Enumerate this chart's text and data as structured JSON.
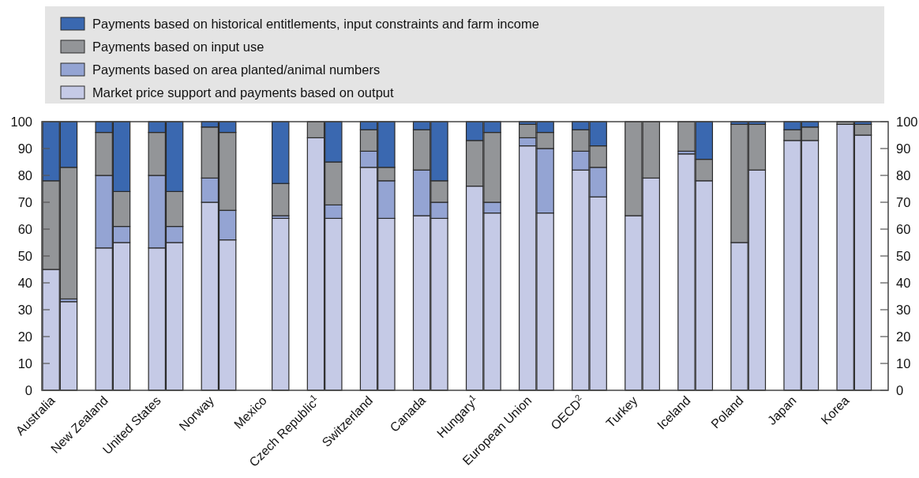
{
  "chart_data": {
    "type": "bar",
    "stacked": true,
    "legend": "top",
    "grid": false,
    "categories": [
      "Australia",
      null,
      null,
      "New Zealand",
      null,
      null,
      "United States",
      null,
      null,
      "Norway",
      null,
      null,
      "Mexico",
      null,
      null,
      "Czech Republic$^{1}$",
      null,
      null,
      "Switzerland",
      null,
      null,
      "Canada",
      null,
      null,
      "Hungary$^{1}$",
      null,
      null,
      "European Union",
      null,
      null,
      "OECD$^{2}$",
      null,
      null,
      "Turkey",
      null,
      null,
      "Iceland",
      null,
      null,
      "Poland",
      null,
      null,
      "Japan",
      null,
      null,
      "Korea",
      null,
      null
    ],
    "series": [
      {
        "name": "Market price support and payments based on output",
        "color": "#c5cae6",
        "values": [
          45,
          33,
          null,
          53,
          55,
          null,
          53,
          55,
          null,
          70,
          56,
          null,
          null,
          64,
          null,
          94,
          64,
          null,
          83,
          64,
          null,
          65,
          64,
          null,
          76,
          66,
          null,
          91,
          66,
          null,
          82,
          72,
          null,
          65,
          79,
          null,
          88,
          78,
          null,
          55,
          82,
          null,
          93,
          93,
          null,
          99,
          95,
          null
        ]
      },
      {
        "name": "Payments based on area planted/animal numbers",
        "color": "#94a4d3",
        "values": [
          0,
          1,
          null,
          27,
          6,
          null,
          27,
          6,
          null,
          9,
          11,
          null,
          null,
          1,
          null,
          0,
          5,
          null,
          6,
          14,
          null,
          17,
          6,
          null,
          0,
          4,
          null,
          3,
          24,
          null,
          7,
          11,
          null,
          0,
          0,
          null,
          1,
          0,
          null,
          0,
          0,
          null,
          0,
          0,
          null,
          0,
          0,
          null
        ]
      },
      {
        "name": "Payments based on input use",
        "color": "#939598",
        "values": [
          33,
          49,
          null,
          16,
          13,
          null,
          16,
          13,
          null,
          19,
          29,
          null,
          null,
          12,
          null,
          6,
          16,
          null,
          8,
          5,
          null,
          15,
          8,
          null,
          17,
          26,
          null,
          5,
          6,
          null,
          8,
          8,
          null,
          35,
          21,
          null,
          11,
          8,
          null,
          44,
          17,
          null,
          4,
          5,
          null,
          1,
          4,
          null
        ]
      },
      {
        "name": "Payments based on historical entitlements, input constraints and farm income",
        "color": "#3a68b0",
        "values": [
          22,
          17,
          null,
          4,
          26,
          null,
          4,
          26,
          null,
          2,
          4,
          null,
          null,
          23,
          null,
          0,
          15,
          null,
          3,
          17,
          null,
          3,
          22,
          null,
          7,
          4,
          null,
          1,
          4,
          null,
          3,
          9,
          null,
          0,
          0,
          null,
          0,
          14,
          null,
          1,
          1,
          null,
          3,
          2,
          null,
          0,
          1,
          null
        ]
      }
    ],
    "ylim": [
      0,
      100
    ],
    "yticks": [
      0,
      10,
      20,
      30,
      40,
      50,
      60,
      70,
      80,
      90,
      100
    ],
    "y2lim": [
      0,
      100
    ],
    "y2ticks": [
      0,
      10,
      20,
      30,
      40,
      50,
      60,
      70,
      80,
      90,
      100
    ]
  }
}
